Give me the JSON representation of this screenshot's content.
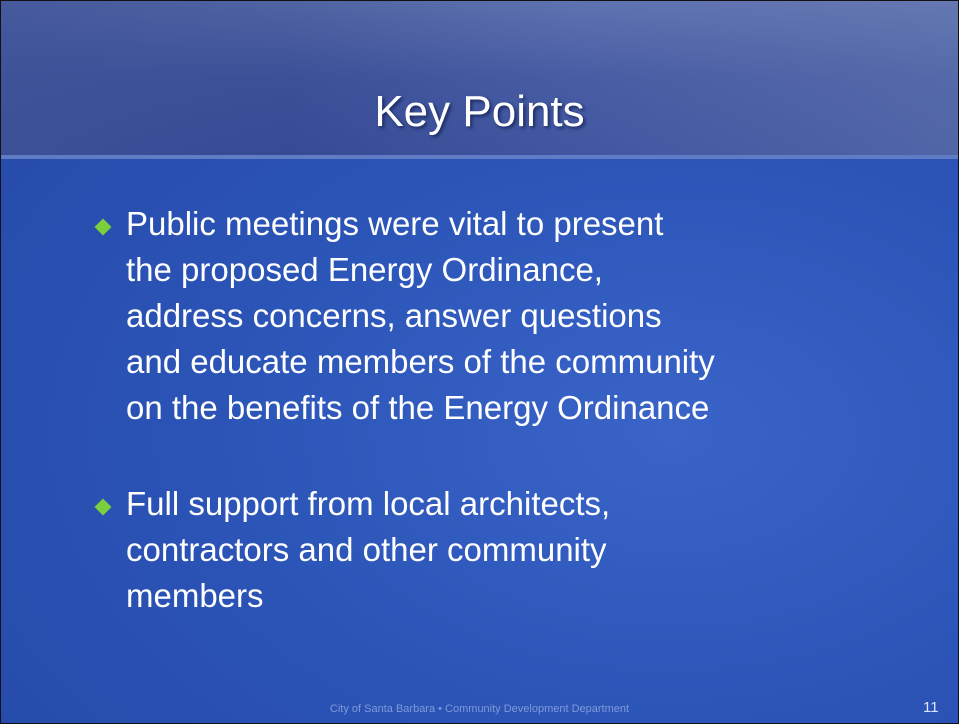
{
  "slide": {
    "title": "Key Points",
    "bullets": [
      [
        "Public meetings were vital to present",
        "the proposed Energy Ordinance,",
        "address concerns, answer questions",
        "and educate members of the community",
        "on the benefits of the Energy Ordinance"
      ],
      [
        "Full support from local architects,",
        "contractors and other community",
        "members"
      ]
    ],
    "footer": "City of Santa Barbara • Community Development Department",
    "page_number": 11
  }
}
